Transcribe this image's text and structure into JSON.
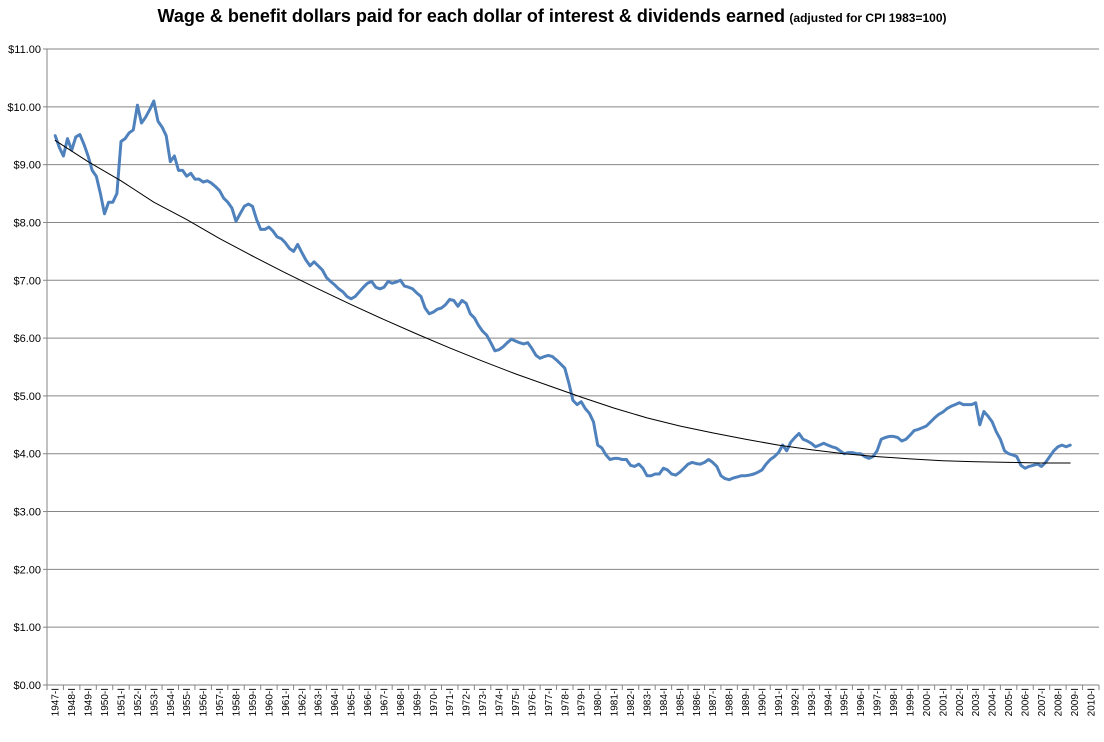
{
  "chart_data": {
    "type": "line",
    "title": "Wage & benefit dollars paid for each dollar of interest & dividends earned",
    "subtitle": "(adjusted for CPI 1983=100)",
    "xlabel": "",
    "ylabel": "",
    "ylim": [
      0,
      11
    ],
    "yticks": [
      "$0.00",
      "$1.00",
      "$2.00",
      "$3.00",
      "$4.00",
      "$5.00",
      "$6.00",
      "$7.00",
      "$8.00",
      "$9.00",
      "$10.00",
      "$11.00"
    ],
    "xticks": [
      "1947-I",
      "1948-I",
      "1949-I",
      "1950-I",
      "1951-I",
      "1952-I",
      "1953-I",
      "1954-I",
      "1955-I",
      "1956-I",
      "1957-I",
      "1958-I",
      "1959-I",
      "1960-I",
      "1961-I",
      "1962-I",
      "1963-I",
      "1964-I",
      "1965-I",
      "1966-I",
      "1967-I",
      "1968-I",
      "1969-I",
      "1970-I",
      "1971-I",
      "1972-I",
      "1973-I",
      "1974-I",
      "1975-I",
      "1976-I",
      "1977-I",
      "1978-I",
      "1979-I",
      "1980-I",
      "1981-I",
      "1982-I",
      "1983-I",
      "1984-I",
      "1985-I",
      "1986-I",
      "1987-I",
      "1988-I",
      "1989-I",
      "1990-I",
      "1991-I",
      "1992-I",
      "1993-I",
      "1994-I",
      "1995-I",
      "1996-I",
      "1997-I",
      "1998-I",
      "1999-I",
      "2000-I",
      "2001-I",
      "2002-I",
      "2003-I",
      "2004-I",
      "2005-I",
      "2006-I",
      "2007-I",
      "2008-I",
      "2009-I",
      "2010-I"
    ],
    "grid": true,
    "legend": "none",
    "series": [
      {
        "color": "#4F81BD",
        "points": [
          [
            1947.0,
            9.5
          ],
          [
            1947.25,
            9.3
          ],
          [
            1947.5,
            9.15
          ],
          [
            1947.75,
            9.45
          ],
          [
            1948.0,
            9.25
          ],
          [
            1948.25,
            9.48
          ],
          [
            1948.5,
            9.52
          ],
          [
            1948.75,
            9.35
          ],
          [
            1949.0,
            9.15
          ],
          [
            1949.25,
            8.9
          ],
          [
            1949.5,
            8.8
          ],
          [
            1949.75,
            8.5
          ],
          [
            1950.0,
            8.15
          ],
          [
            1950.25,
            8.35
          ],
          [
            1950.5,
            8.35
          ],
          [
            1950.75,
            8.5
          ],
          [
            1951.0,
            9.4
          ],
          [
            1951.25,
            9.45
          ],
          [
            1951.5,
            9.55
          ],
          [
            1951.75,
            9.6
          ],
          [
            1952.0,
            10.03
          ],
          [
            1952.25,
            9.72
          ],
          [
            1952.5,
            9.82
          ],
          [
            1952.75,
            9.95
          ],
          [
            1953.0,
            10.1
          ],
          [
            1953.25,
            9.75
          ],
          [
            1953.5,
            9.65
          ],
          [
            1953.75,
            9.5
          ],
          [
            1954.0,
            9.05
          ],
          [
            1954.25,
            9.15
          ],
          [
            1954.5,
            8.9
          ],
          [
            1954.75,
            8.9
          ],
          [
            1955.0,
            8.8
          ],
          [
            1955.25,
            8.85
          ],
          [
            1955.5,
            8.75
          ],
          [
            1955.75,
            8.75
          ],
          [
            1956.0,
            8.7
          ],
          [
            1956.25,
            8.72
          ],
          [
            1956.5,
            8.68
          ],
          [
            1956.75,
            8.62
          ],
          [
            1957.0,
            8.55
          ],
          [
            1957.25,
            8.42
          ],
          [
            1957.5,
            8.35
          ],
          [
            1957.75,
            8.25
          ],
          [
            1958.0,
            8.02
          ],
          [
            1958.25,
            8.15
          ],
          [
            1958.5,
            8.28
          ],
          [
            1958.75,
            8.32
          ],
          [
            1959.0,
            8.28
          ],
          [
            1959.25,
            8.05
          ],
          [
            1959.5,
            7.88
          ],
          [
            1959.75,
            7.88
          ],
          [
            1960.0,
            7.92
          ],
          [
            1960.25,
            7.85
          ],
          [
            1960.5,
            7.75
          ],
          [
            1960.75,
            7.72
          ],
          [
            1961.0,
            7.65
          ],
          [
            1961.25,
            7.55
          ],
          [
            1961.5,
            7.5
          ],
          [
            1961.75,
            7.62
          ],
          [
            1962.0,
            7.48
          ],
          [
            1962.25,
            7.35
          ],
          [
            1962.5,
            7.25
          ],
          [
            1962.75,
            7.32
          ],
          [
            1963.0,
            7.25
          ],
          [
            1963.25,
            7.18
          ],
          [
            1963.5,
            7.05
          ],
          [
            1963.75,
            6.98
          ],
          [
            1964.0,
            6.92
          ],
          [
            1964.25,
            6.85
          ],
          [
            1964.5,
            6.8
          ],
          [
            1964.75,
            6.72
          ],
          [
            1965.0,
            6.68
          ],
          [
            1965.25,
            6.72
          ],
          [
            1965.5,
            6.8
          ],
          [
            1965.75,
            6.88
          ],
          [
            1966.0,
            6.95
          ],
          [
            1966.25,
            6.98
          ],
          [
            1966.5,
            6.88
          ],
          [
            1966.75,
            6.85
          ],
          [
            1967.0,
            6.88
          ],
          [
            1967.25,
            6.98
          ],
          [
            1967.5,
            6.95
          ],
          [
            1967.75,
            6.97
          ],
          [
            1968.0,
            7.0
          ],
          [
            1968.25,
            6.9
          ],
          [
            1968.5,
            6.88
          ],
          [
            1968.75,
            6.85
          ],
          [
            1969.0,
            6.78
          ],
          [
            1969.25,
            6.72
          ],
          [
            1969.5,
            6.52
          ],
          [
            1969.75,
            6.42
          ],
          [
            1970.0,
            6.45
          ],
          [
            1970.25,
            6.5
          ],
          [
            1970.5,
            6.52
          ],
          [
            1970.75,
            6.58
          ],
          [
            1971.0,
            6.67
          ],
          [
            1971.25,
            6.65
          ],
          [
            1971.5,
            6.55
          ],
          [
            1971.75,
            6.65
          ],
          [
            1972.0,
            6.6
          ],
          [
            1972.25,
            6.42
          ],
          [
            1972.5,
            6.35
          ],
          [
            1972.75,
            6.22
          ],
          [
            1973.0,
            6.12
          ],
          [
            1973.25,
            6.05
          ],
          [
            1973.5,
            5.92
          ],
          [
            1973.75,
            5.78
          ],
          [
            1974.0,
            5.8
          ],
          [
            1974.25,
            5.85
          ],
          [
            1974.5,
            5.92
          ],
          [
            1974.75,
            5.98
          ],
          [
            1975.0,
            5.95
          ],
          [
            1975.25,
            5.92
          ],
          [
            1975.5,
            5.9
          ],
          [
            1975.75,
            5.92
          ],
          [
            1976.0,
            5.82
          ],
          [
            1976.25,
            5.7
          ],
          [
            1976.5,
            5.65
          ],
          [
            1976.75,
            5.68
          ],
          [
            1977.0,
            5.7
          ],
          [
            1977.25,
            5.68
          ],
          [
            1977.5,
            5.62
          ],
          [
            1977.75,
            5.55
          ],
          [
            1978.0,
            5.48
          ],
          [
            1978.25,
            5.22
          ],
          [
            1978.5,
            4.92
          ],
          [
            1978.75,
            4.85
          ],
          [
            1979.0,
            4.9
          ],
          [
            1979.25,
            4.78
          ],
          [
            1979.5,
            4.7
          ],
          [
            1979.75,
            4.55
          ],
          [
            1980.0,
            4.15
          ],
          [
            1980.25,
            4.1
          ],
          [
            1980.5,
            3.98
          ],
          [
            1980.75,
            3.9
          ],
          [
            1981.0,
            3.92
          ],
          [
            1981.25,
            3.92
          ],
          [
            1981.5,
            3.9
          ],
          [
            1981.75,
            3.9
          ],
          [
            1982.0,
            3.8
          ],
          [
            1982.25,
            3.78
          ],
          [
            1982.5,
            3.82
          ],
          [
            1982.75,
            3.75
          ],
          [
            1983.0,
            3.62
          ],
          [
            1983.25,
            3.62
          ],
          [
            1983.5,
            3.65
          ],
          [
            1983.75,
            3.65
          ],
          [
            1984.0,
            3.75
          ],
          [
            1984.25,
            3.72
          ],
          [
            1984.5,
            3.65
          ],
          [
            1984.75,
            3.63
          ],
          [
            1985.0,
            3.68
          ],
          [
            1985.25,
            3.75
          ],
          [
            1985.5,
            3.82
          ],
          [
            1985.75,
            3.85
          ],
          [
            1986.0,
            3.83
          ],
          [
            1986.25,
            3.82
          ],
          [
            1986.5,
            3.85
          ],
          [
            1986.75,
            3.9
          ],
          [
            1987.0,
            3.85
          ],
          [
            1987.25,
            3.78
          ],
          [
            1987.5,
            3.62
          ],
          [
            1987.75,
            3.57
          ],
          [
            1988.0,
            3.55
          ],
          [
            1988.25,
            3.58
          ],
          [
            1988.5,
            3.6
          ],
          [
            1988.75,
            3.62
          ],
          [
            1989.0,
            3.62
          ],
          [
            1989.25,
            3.63
          ],
          [
            1989.5,
            3.65
          ],
          [
            1989.75,
            3.68
          ],
          [
            1990.0,
            3.72
          ],
          [
            1990.25,
            3.82
          ],
          [
            1990.5,
            3.9
          ],
          [
            1990.75,
            3.95
          ],
          [
            1991.0,
            4.02
          ],
          [
            1991.25,
            4.15
          ],
          [
            1991.5,
            4.05
          ],
          [
            1991.75,
            4.2
          ],
          [
            1992.0,
            4.28
          ],
          [
            1992.25,
            4.35
          ],
          [
            1992.5,
            4.25
          ],
          [
            1992.75,
            4.22
          ],
          [
            1993.0,
            4.18
          ],
          [
            1993.25,
            4.12
          ],
          [
            1993.5,
            4.15
          ],
          [
            1993.75,
            4.18
          ],
          [
            1994.0,
            4.15
          ],
          [
            1994.25,
            4.12
          ],
          [
            1994.5,
            4.1
          ],
          [
            1994.75,
            4.05
          ],
          [
            1995.0,
            4.0
          ],
          [
            1995.25,
            4.02
          ],
          [
            1995.5,
            4.02
          ],
          [
            1995.75,
            4.0
          ],
          [
            1996.0,
            4.0
          ],
          [
            1996.25,
            3.95
          ],
          [
            1996.5,
            3.92
          ],
          [
            1996.75,
            3.95
          ],
          [
            1997.0,
            4.05
          ],
          [
            1997.25,
            4.25
          ],
          [
            1997.5,
            4.28
          ],
          [
            1997.75,
            4.3
          ],
          [
            1998.0,
            4.3
          ],
          [
            1998.25,
            4.28
          ],
          [
            1998.5,
            4.22
          ],
          [
            1998.75,
            4.25
          ],
          [
            1999.0,
            4.32
          ],
          [
            1999.25,
            4.4
          ],
          [
            1999.5,
            4.42
          ],
          [
            1999.75,
            4.45
          ],
          [
            2000.0,
            4.48
          ],
          [
            2000.25,
            4.55
          ],
          [
            2000.5,
            4.62
          ],
          [
            2000.75,
            4.68
          ],
          [
            2001.0,
            4.72
          ],
          [
            2001.25,
            4.78
          ],
          [
            2001.5,
            4.82
          ],
          [
            2001.75,
            4.85
          ],
          [
            2002.0,
            4.88
          ],
          [
            2002.25,
            4.85
          ],
          [
            2002.5,
            4.85
          ],
          [
            2002.75,
            4.85
          ],
          [
            2003.0,
            4.88
          ],
          [
            2003.25,
            4.5
          ],
          [
            2003.5,
            4.73
          ],
          [
            2003.75,
            4.65
          ],
          [
            2004.0,
            4.55
          ],
          [
            2004.25,
            4.38
          ],
          [
            2004.5,
            4.25
          ],
          [
            2004.75,
            4.05
          ],
          [
            2005.0,
            4.0
          ],
          [
            2005.25,
            3.98
          ],
          [
            2005.5,
            3.95
          ],
          [
            2005.75,
            3.8
          ],
          [
            2006.0,
            3.75
          ],
          [
            2006.25,
            3.78
          ],
          [
            2006.5,
            3.8
          ],
          [
            2006.75,
            3.82
          ],
          [
            2007.0,
            3.78
          ],
          [
            2007.25,
            3.85
          ],
          [
            2007.5,
            3.95
          ],
          [
            2007.75,
            4.05
          ],
          [
            2008.0,
            4.12
          ],
          [
            2008.25,
            4.15
          ],
          [
            2008.5,
            4.12
          ],
          [
            2008.75,
            4.15
          ]
        ]
      },
      {
        "color": "#000000",
        "points": [
          [
            1947.0,
            9.42
          ],
          [
            1949.0,
            9.05
          ],
          [
            1951.0,
            8.72
          ],
          [
            1953.0,
            8.35
          ],
          [
            1955.0,
            8.05
          ],
          [
            1957.0,
            7.72
          ],
          [
            1959.0,
            7.42
          ],
          [
            1961.0,
            7.13
          ],
          [
            1963.0,
            6.85
          ],
          [
            1965.0,
            6.58
          ],
          [
            1967.0,
            6.32
          ],
          [
            1969.0,
            6.07
          ],
          [
            1971.0,
            5.83
          ],
          [
            1973.0,
            5.6
          ],
          [
            1975.0,
            5.38
          ],
          [
            1977.0,
            5.18
          ],
          [
            1979.0,
            4.98
          ],
          [
            1981.0,
            4.79
          ],
          [
            1983.0,
            4.62
          ],
          [
            1985.0,
            4.48
          ],
          [
            1987.0,
            4.36
          ],
          [
            1989.0,
            4.25
          ],
          [
            1991.0,
            4.15
          ],
          [
            1993.0,
            4.07
          ],
          [
            1995.0,
            4.0
          ],
          [
            1997.0,
            3.95
          ],
          [
            1999.0,
            3.91
          ],
          [
            2001.0,
            3.88
          ],
          [
            2003.0,
            3.86
          ],
          [
            2005.0,
            3.85
          ],
          [
            2007.0,
            3.84
          ],
          [
            2008.75,
            3.84
          ]
        ]
      }
    ]
  }
}
